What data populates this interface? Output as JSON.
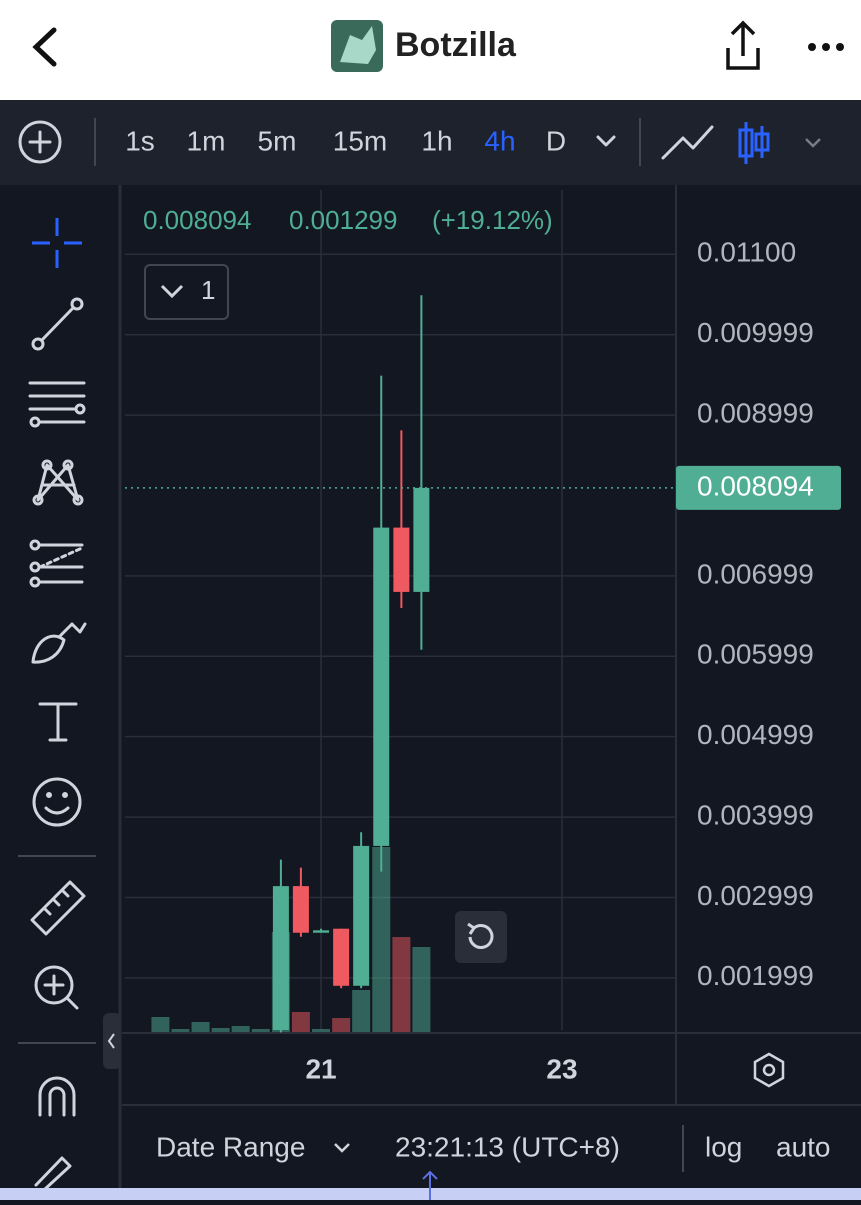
{
  "header": {
    "title": "Botzilla"
  },
  "toolbar": {
    "intervals": [
      "1s",
      "1m",
      "5m",
      "15m",
      "1h",
      "4h",
      "D"
    ],
    "active_interval": 5
  },
  "chart_data": {
    "type": "candlestick",
    "last_price": 0.008094,
    "change": 0.001299,
    "change_label": "(+19.12%)",
    "pane_label": "1",
    "x": [
      20.667,
      20.833,
      21.0,
      21.167,
      21.333,
      21.5,
      21.667,
      21.833
    ],
    "open": [
      0.00135,
      0.00314,
      0.00256,
      0.00261,
      0.0019,
      0.00364,
      0.0076,
      0.0068
    ],
    "high": [
      0.00347,
      0.00337,
      0.00261,
      0.00261,
      0.00381,
      0.00949,
      0.00881,
      0.01049
    ],
    "low": [
      0.00132,
      0.00251,
      0.00256,
      0.00187,
      0.00187,
      0.00332,
      0.0066,
      0.00608
    ],
    "close": [
      0.00314,
      0.00256,
      0.00259,
      0.0019,
      0.00364,
      0.0076,
      0.0068,
      0.008094
    ],
    "up_color": "#4fae93",
    "down_color": "#ef5a60",
    "volume": {
      "x": [
        19.667,
        19.833,
        20.0,
        20.167,
        20.333,
        20.5,
        20.667,
        20.833,
        21.0,
        21.167,
        21.333,
        21.5,
        21.667,
        21.833
      ],
      "values": [
        15,
        3,
        10,
        4,
        6,
        3,
        100,
        20,
        3,
        14,
        42,
        185,
        95,
        85
      ]
    },
    "xlim": [
      19.373,
      23.938
    ],
    "xticks": [
      21,
      23
    ],
    "ylim": [
      0.00135,
      0.0118
    ],
    "yticks": [
      {
        "value": 0.011,
        "label": "0.01100"
      },
      0.009999,
      0.008999,
      0.006999,
      0.005999,
      0.004999,
      0.003999,
      0.002999,
      0.001999
    ],
    "grid": true
  },
  "footer": {
    "date_range": "Date Range",
    "time": "23:21:13 (UTC+8)",
    "log": "log",
    "auto": "auto"
  }
}
